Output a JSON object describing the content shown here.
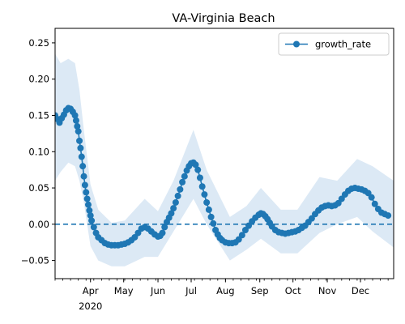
{
  "chart_data": {
    "type": "line",
    "title": "VA-Virginia Beach",
    "xlabel": "",
    "ylabel": "",
    "xlim": [
      "2020-02-29",
      "2020-12-31"
    ],
    "ylim": [
      -0.075,
      0.27
    ],
    "y_ticks": [
      -0.05,
      0.0,
      0.05,
      0.1,
      0.15,
      0.2,
      0.25
    ],
    "y_tick_labels": [
      "−0.05",
      "0.00",
      "0.05",
      "0.10",
      "0.15",
      "0.20",
      "0.25"
    ],
    "x_ticks": [
      {
        "date": "2020-04-01",
        "label": "Apr",
        "sublabel": "2020"
      },
      {
        "date": "2020-05-01",
        "label": "May"
      },
      {
        "date": "2020-06-01",
        "label": "Jun"
      },
      {
        "date": "2020-07-01",
        "label": "Jul"
      },
      {
        "date": "2020-08-01",
        "label": "Aug"
      },
      {
        "date": "2020-09-01",
        "label": "Sep"
      },
      {
        "date": "2020-10-01",
        "label": "Oct"
      },
      {
        "date": "2020-11-01",
        "label": "Nov"
      },
      {
        "date": "2020-12-01",
        "label": "Dec"
      }
    ],
    "reference_line": {
      "y": 0.0,
      "style": "dashed"
    },
    "grid": false,
    "legend": {
      "position": "top-right"
    },
    "colors": {
      "series": "#1f77b4",
      "band": "#dce9f5"
    },
    "series": [
      {
        "name": "growth_rate",
        "marker": "circle",
        "points": [
          [
            "2020-02-29",
            0.15
          ],
          [
            "2020-03-02",
            0.145
          ],
          [
            "2020-03-04",
            0.14
          ],
          [
            "2020-03-06",
            0.146
          ],
          [
            "2020-03-08",
            0.151
          ],
          [
            "2020-03-10",
            0.157
          ],
          [
            "2020-03-12",
            0.16
          ],
          [
            "2020-03-14",
            0.159
          ],
          [
            "2020-03-16",
            0.155
          ],
          [
            "2020-03-18",
            0.15
          ],
          [
            "2020-03-19",
            0.143
          ],
          [
            "2020-03-20",
            0.135
          ],
          [
            "2020-03-21",
            0.128
          ],
          [
            "2020-03-22",
            0.115
          ],
          [
            "2020-03-23",
            0.105
          ],
          [
            "2020-03-24",
            0.093
          ],
          [
            "2020-03-25",
            0.08
          ],
          [
            "2020-03-26",
            0.066
          ],
          [
            "2020-03-27",
            0.054
          ],
          [
            "2020-03-28",
            0.044
          ],
          [
            "2020-03-29",
            0.035
          ],
          [
            "2020-03-30",
            0.027
          ],
          [
            "2020-03-31",
            0.019
          ],
          [
            "2020-04-01",
            0.012
          ],
          [
            "2020-04-02",
            0.005
          ],
          [
            "2020-04-04",
            -0.004
          ],
          [
            "2020-04-06",
            -0.012
          ],
          [
            "2020-04-08",
            -0.018
          ],
          [
            "2020-04-11",
            -0.022
          ],
          [
            "2020-04-14",
            -0.026
          ],
          [
            "2020-04-17",
            -0.028
          ],
          [
            "2020-04-20",
            -0.029
          ],
          [
            "2020-04-23",
            -0.029
          ],
          [
            "2020-04-26",
            -0.029
          ],
          [
            "2020-04-29",
            -0.028
          ],
          [
            "2020-05-02",
            -0.027
          ],
          [
            "2020-05-05",
            -0.025
          ],
          [
            "2020-05-08",
            -0.022
          ],
          [
            "2020-05-11",
            -0.018
          ],
          [
            "2020-05-14",
            -0.012
          ],
          [
            "2020-05-17",
            -0.006
          ],
          [
            "2020-05-20",
            -0.004
          ],
          [
            "2020-05-23",
            -0.006
          ],
          [
            "2020-05-26",
            -0.01
          ],
          [
            "2020-05-29",
            -0.014
          ],
          [
            "2020-06-01",
            -0.017
          ],
          [
            "2020-06-03",
            -0.016
          ],
          [
            "2020-06-05",
            -0.012
          ],
          [
            "2020-06-07",
            -0.004
          ],
          [
            "2020-06-09",
            0.003
          ],
          [
            "2020-06-11",
            0.009
          ],
          [
            "2020-06-13",
            0.015
          ],
          [
            "2020-06-15",
            0.022
          ],
          [
            "2020-06-17",
            0.03
          ],
          [
            "2020-06-19",
            0.039
          ],
          [
            "2020-06-21",
            0.048
          ],
          [
            "2020-06-23",
            0.058
          ],
          [
            "2020-06-25",
            0.066
          ],
          [
            "2020-06-27",
            0.074
          ],
          [
            "2020-06-29",
            0.08
          ],
          [
            "2020-07-01",
            0.084
          ],
          [
            "2020-07-03",
            0.085
          ],
          [
            "2020-07-05",
            0.082
          ],
          [
            "2020-07-07",
            0.075
          ],
          [
            "2020-07-09",
            0.064
          ],
          [
            "2020-07-11",
            0.052
          ],
          [
            "2020-07-13",
            0.041
          ],
          [
            "2020-07-15",
            0.03
          ],
          [
            "2020-07-17",
            0.02
          ],
          [
            "2020-07-19",
            0.01
          ],
          [
            "2020-07-21",
            0.001
          ],
          [
            "2020-07-23",
            -0.008
          ],
          [
            "2020-07-25",
            -0.014
          ],
          [
            "2020-07-27",
            -0.019
          ],
          [
            "2020-07-29",
            -0.022
          ],
          [
            "2020-08-01",
            -0.025
          ],
          [
            "2020-08-04",
            -0.026
          ],
          [
            "2020-08-07",
            -0.026
          ],
          [
            "2020-08-10",
            -0.025
          ],
          [
            "2020-08-13",
            -0.021
          ],
          [
            "2020-08-16",
            -0.015
          ],
          [
            "2020-08-19",
            -0.008
          ],
          [
            "2020-08-22",
            -0.002
          ],
          [
            "2020-08-25",
            0.004
          ],
          [
            "2020-08-28",
            0.009
          ],
          [
            "2020-08-31",
            0.013
          ],
          [
            "2020-09-02",
            0.015
          ],
          [
            "2020-09-04",
            0.014
          ],
          [
            "2020-09-06",
            0.011
          ],
          [
            "2020-09-08",
            0.007
          ],
          [
            "2020-09-10",
            0.002
          ],
          [
            "2020-09-12",
            -0.003
          ],
          [
            "2020-09-15",
            -0.008
          ],
          [
            "2020-09-18",
            -0.011
          ],
          [
            "2020-09-21",
            -0.012
          ],
          [
            "2020-09-24",
            -0.013
          ],
          [
            "2020-09-27",
            -0.012
          ],
          [
            "2020-09-30",
            -0.011
          ],
          [
            "2020-10-03",
            -0.01
          ],
          [
            "2020-10-06",
            -0.008
          ],
          [
            "2020-10-09",
            -0.005
          ],
          [
            "2020-10-12",
            -0.002
          ],
          [
            "2020-10-15",
            0.003
          ],
          [
            "2020-10-18",
            0.008
          ],
          [
            "2020-10-21",
            0.014
          ],
          [
            "2020-10-24",
            0.019
          ],
          [
            "2020-10-27",
            0.023
          ],
          [
            "2020-10-30",
            0.025
          ],
          [
            "2020-11-02",
            0.026
          ],
          [
            "2020-11-05",
            0.025
          ],
          [
            "2020-11-08",
            0.026
          ],
          [
            "2020-11-11",
            0.029
          ],
          [
            "2020-11-14",
            0.035
          ],
          [
            "2020-11-17",
            0.041
          ],
          [
            "2020-11-20",
            0.046
          ],
          [
            "2020-11-23",
            0.049
          ],
          [
            "2020-11-26",
            0.05
          ],
          [
            "2020-11-29",
            0.049
          ],
          [
            "2020-12-02",
            0.048
          ],
          [
            "2020-12-05",
            0.046
          ],
          [
            "2020-12-08",
            0.043
          ],
          [
            "2020-12-11",
            0.037
          ],
          [
            "2020-12-14",
            0.028
          ],
          [
            "2020-12-17",
            0.021
          ],
          [
            "2020-12-20",
            0.016
          ],
          [
            "2020-12-23",
            0.014
          ],
          [
            "2020-12-26",
            0.012
          ]
        ],
        "band": [
          [
            "2020-02-29",
            0.06,
            0.235
          ],
          [
            "2020-03-05",
            0.072,
            0.222
          ],
          [
            "2020-03-12",
            0.085,
            0.228
          ],
          [
            "2020-03-18",
            0.08,
            0.222
          ],
          [
            "2020-03-22",
            0.06,
            0.185
          ],
          [
            "2020-03-26",
            0.03,
            0.13
          ],
          [
            "2020-04-01",
            -0.03,
            0.055
          ],
          [
            "2020-04-08",
            -0.05,
            0.02
          ],
          [
            "2020-04-20",
            -0.058,
            0.002
          ],
          [
            "2020-05-02",
            -0.058,
            0.005
          ],
          [
            "2020-05-20",
            -0.045,
            0.035
          ],
          [
            "2020-06-01",
            -0.045,
            0.018
          ],
          [
            "2020-06-15",
            -0.01,
            0.06
          ],
          [
            "2020-07-03",
            0.035,
            0.13
          ],
          [
            "2020-07-15",
            0.0,
            0.075
          ],
          [
            "2020-08-05",
            -0.05,
            0.01
          ],
          [
            "2020-08-20",
            -0.035,
            0.025
          ],
          [
            "2020-09-02",
            -0.02,
            0.05
          ],
          [
            "2020-09-20",
            -0.04,
            0.02
          ],
          [
            "2020-10-05",
            -0.04,
            0.02
          ],
          [
            "2020-10-25",
            -0.012,
            0.065
          ],
          [
            "2020-11-10",
            0.0,
            0.06
          ],
          [
            "2020-11-28",
            0.01,
            0.09
          ],
          [
            "2020-12-12",
            -0.01,
            0.08
          ],
          [
            "2020-12-31",
            -0.032,
            0.06
          ]
        ]
      }
    ]
  }
}
